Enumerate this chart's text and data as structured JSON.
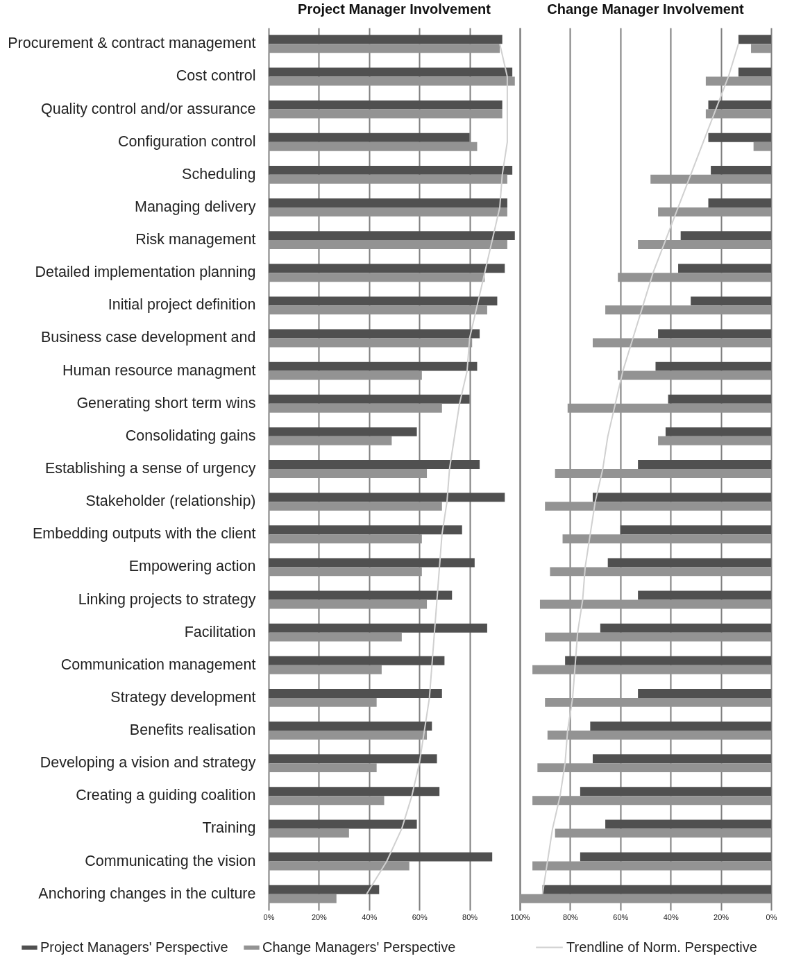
{
  "chart_data": [
    {
      "type": "bar",
      "orientation": "horizontal",
      "title": "Project Manager Involvement",
      "categories": [
        "Procurement & contract management",
        "Cost control",
        "Quality control and/or assurance",
        "Configuration control",
        "Scheduling",
        "Managing delivery",
        "Risk management",
        "Detailed implementation planning",
        "Initial project definition",
        "Business case development and",
        "Human resource managment",
        "Generating short term wins",
        "Consolidating gains",
        "Establishing a sense of urgency",
        "Stakeholder (relationship)",
        "Embedding outputs with the client",
        "Empowering action",
        "Linking projects to strategy",
        "Facilitation",
        "Communication management",
        "Strategy development",
        "Benefits realisation",
        "Developing a vision and strategy",
        "Creating a guiding coalition",
        "Training",
        "Communicating the vision",
        "Anchoring changes in the culture"
      ],
      "series": [
        {
          "name": "Project Managers' Perspective",
          "color": "#505050",
          "values": [
            93,
            97,
            93,
            80,
            97,
            95,
            98,
            94,
            91,
            84,
            83,
            80,
            59,
            84,
            94,
            77,
            82,
            73,
            87,
            70,
            69,
            65,
            67,
            68,
            59,
            89,
            44
          ]
        },
        {
          "name": "Change Managers' Perspective",
          "color": "#939393",
          "values": [
            92,
            98,
            93,
            83,
            95,
            95,
            95,
            86,
            87,
            81,
            61,
            69,
            49,
            63,
            69,
            61,
            61,
            63,
            53,
            45,
            43,
            63,
            43,
            46,
            32,
            56,
            27
          ]
        },
        {
          "type": "line",
          "name": "Trendline of Norm. Perspective",
          "color": "#d0d0d0",
          "values": [
            92,
            95,
            95,
            95,
            93,
            92,
            89,
            86,
            83,
            80,
            79,
            76,
            74,
            72,
            71,
            69,
            68,
            67,
            66,
            65,
            64,
            62,
            60,
            57,
            53,
            47,
            39
          ]
        }
      ],
      "xlim": [
        0,
        100
      ],
      "xticks": [
        {
          "value": 0,
          "label": "0%"
        },
        {
          "value": 20,
          "label": "20%"
        },
        {
          "value": 40,
          "label": "40%"
        },
        {
          "value": 60,
          "label": "60%"
        },
        {
          "value": 80,
          "label": "80%"
        },
        {
          "value": 100,
          "label": "100%"
        }
      ],
      "grid": "x",
      "legend": "bottom"
    },
    {
      "type": "bar",
      "orientation": "horizontal",
      "title": "Change Manager Involvement",
      "categories": [
        null,
        null,
        null,
        null,
        null,
        null,
        null,
        null,
        null,
        null,
        null,
        null,
        null,
        null,
        null,
        null,
        null,
        null,
        null,
        null,
        null,
        null,
        null,
        null,
        null,
        null,
        null
      ],
      "series": [
        {
          "name": "Project Managers' Perspective",
          "color": "#505050",
          "values": [
            13,
            13,
            25,
            25,
            24,
            25,
            36,
            37,
            32,
            45,
            46,
            41,
            42,
            53,
            71,
            60,
            65,
            53,
            68,
            82,
            53,
            72,
            71,
            76,
            66,
            76,
            91
          ]
        },
        {
          "name": "Change Managers' Perspective",
          "color": "#939393",
          "values": [
            8,
            26,
            26,
            7,
            48,
            45,
            53,
            61,
            66,
            71,
            61,
            81,
            45,
            86,
            90,
            83,
            88,
            92,
            90,
            95,
            90,
            89,
            93,
            95,
            86,
            95,
            100
          ]
        },
        {
          "type": "line",
          "name": "Trendline of Norm. Perspective",
          "color": "#d0d0d0",
          "values": [
            13,
            17,
            22,
            27,
            32,
            37,
            42,
            47,
            51,
            55,
            59,
            62,
            65,
            67,
            70,
            72,
            74,
            75,
            77,
            78,
            79,
            81,
            82,
            84,
            87,
            89,
            91
          ]
        }
      ],
      "xlim": [
        100,
        0
      ],
      "xticks": [
        {
          "value": 100,
          "label": null
        },
        {
          "value": 80,
          "label": "80%"
        },
        {
          "value": 60,
          "label": "60%"
        },
        {
          "value": 40,
          "label": "40%"
        },
        {
          "value": 20,
          "label": "20%"
        },
        {
          "value": 0,
          "label": "0%"
        }
      ],
      "grid": "x",
      "tick_labels": "x"
    }
  ]
}
